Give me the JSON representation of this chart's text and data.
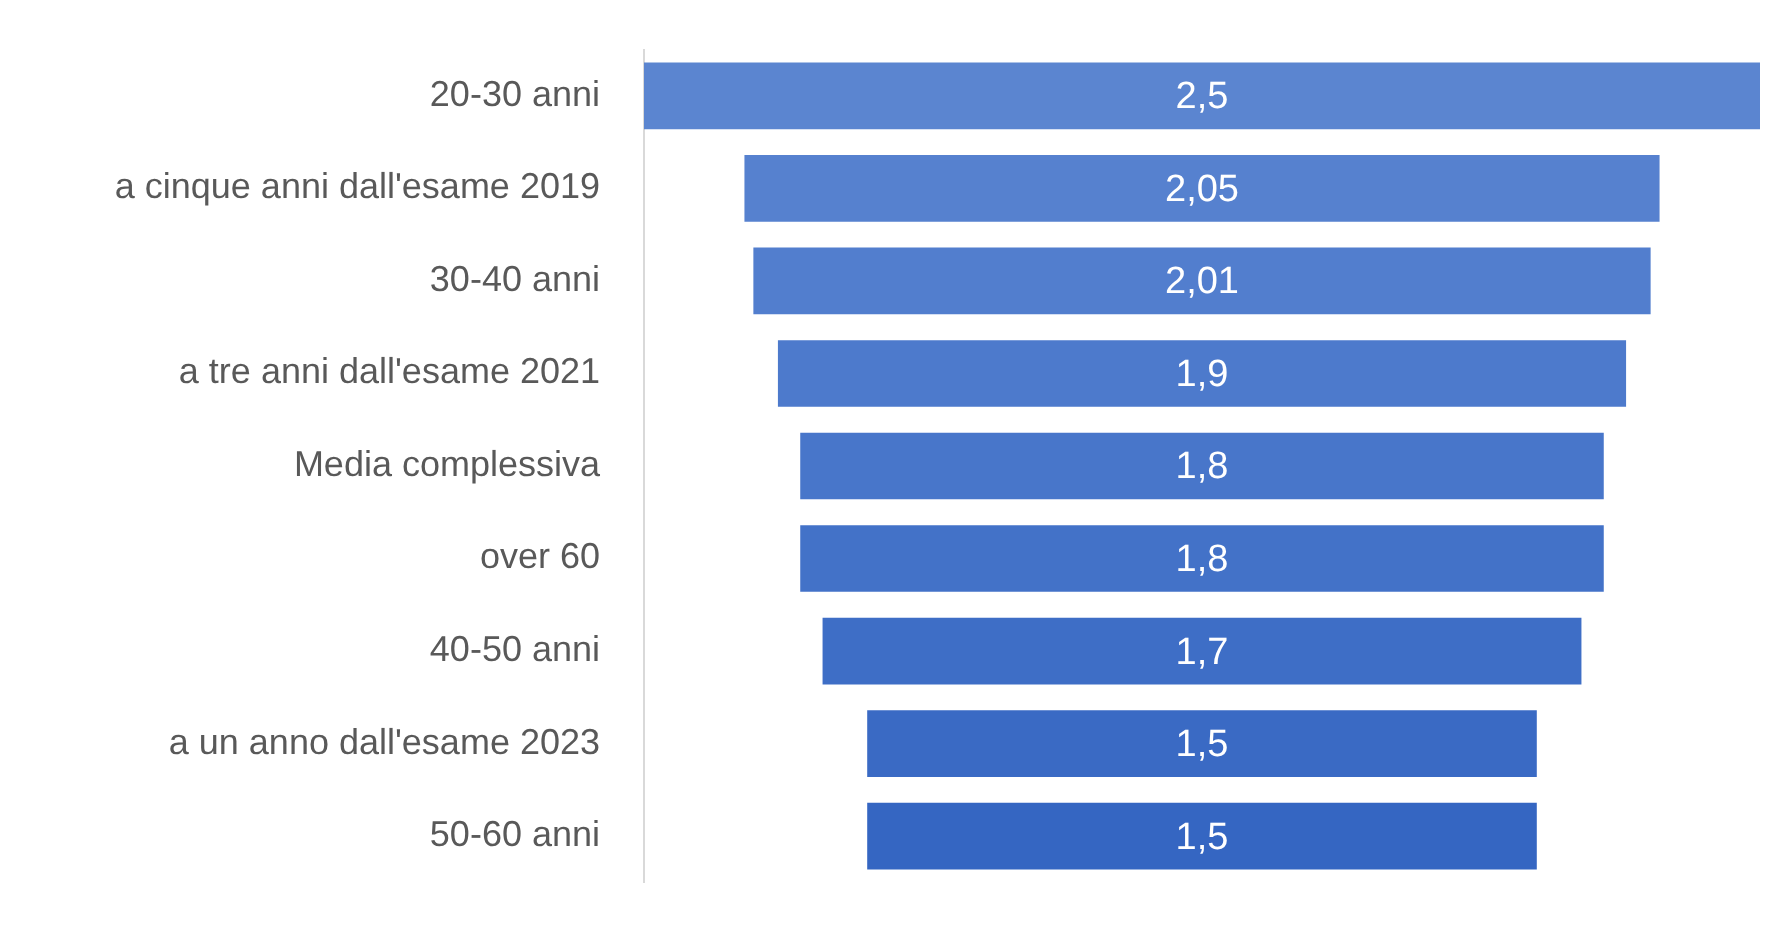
{
  "chart_data": {
    "type": "other",
    "categories": [
      "20-30 anni",
      "a cinque anni dall'esame 2019",
      "30-40 anni",
      "a tre anni dall'esame 2021",
      "Media complessiva",
      "over 60",
      "40-50 anni",
      "a un anno dall'esame 2023",
      "50-60 anni"
    ],
    "values": [
      2.5,
      2.05,
      2.01,
      1.9,
      1.8,
      1.8,
      1.7,
      1.5,
      1.5
    ],
    "value_labels": [
      "2,5",
      "2,05",
      "2,01",
      "1,9",
      "1,8",
      "1,8",
      "1,7",
      "1,5",
      "1,5"
    ],
    "colors": [
      "#5b85d0",
      "#5681cf",
      "#527ece",
      "#4d7acc",
      "#4876ca",
      "#4372c8",
      "#3e6ec6",
      "#3a6ac4",
      "#3566c2"
    ],
    "legend": false
  }
}
